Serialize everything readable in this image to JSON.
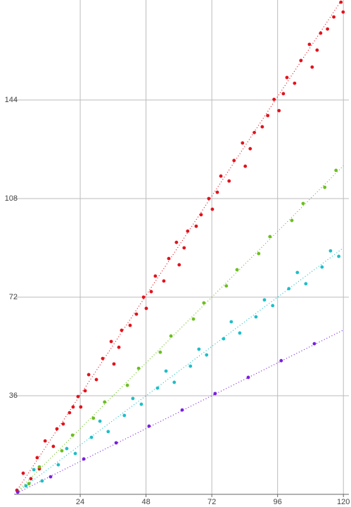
{
  "chart_data": {
    "type": "scatter",
    "xlim": [
      0,
      122
    ],
    "ylim": [
      0,
      180.5
    ],
    "xticks": [
      24,
      48,
      72,
      96,
      120
    ],
    "yticks": [
      36,
      72,
      108,
      144
    ],
    "grid": true,
    "series": [
      {
        "color": "#e3131c",
        "mode": "points",
        "x": [
          0.9,
          3.2,
          6,
          8.3,
          9.1,
          11.2,
          14.2,
          15.5,
          17.8,
          20.1,
          21.4,
          23.2,
          24.2,
          25.8,
          27.1,
          29.9,
          32.2,
          35.3,
          36.3,
          38.1,
          39.1,
          42.2,
          44.5,
          47.1,
          48.1,
          49.9,
          51.4,
          54.5,
          56.3,
          59.1,
          60.1,
          61.9,
          63.2,
          66.3,
          68.1,
          70.9,
          72.2,
          74,
          75.3,
          78.3,
          80.1,
          83.2,
          84.2,
          86,
          87.5,
          90.4,
          92.4,
          94.7,
          96.5,
          98.1,
          99.4,
          102.2,
          104.5,
          107.6,
          108.6,
          110.4,
          111.7,
          114.2,
          116.5,
          119.1,
          119.9
        ],
        "values": [
          1.5,
          7.7,
          5.7,
          13.4,
          9.3,
          19.5,
          17.5,
          23.9,
          25.7,
          29.8,
          31.9,
          35.7,
          31.9,
          37.8,
          43.7,
          41.9,
          49.6,
          55.8,
          47.6,
          53.7,
          59.9,
          61.7,
          65.8,
          72,
          67.9,
          74,
          79.7,
          77.9,
          86.1,
          92,
          83.8,
          90,
          96.1,
          97.9,
          102.1,
          108,
          104.1,
          110.3,
          116.2,
          114.4,
          121.9,
          128.3,
          119.8,
          126.2,
          132.1,
          134.2,
          138.3,
          144.2,
          140.1,
          146.3,
          152.2,
          150.1,
          158.4,
          164.3,
          156,
          162.2,
          168.4,
          169.9,
          174.3,
          179.7,
          176.1
        ]
      },
      {
        "color": "#e3131c",
        "mode": "line",
        "x": [
          0,
          119
        ],
        "values": [
          0,
          180
        ]
      },
      {
        "color": "#6cbf1f",
        "mode": "points",
        "x": [
          5.3,
          9.1,
          17.3,
          21.2,
          28.8,
          32.9,
          41.2,
          45.3,
          53.2,
          57.1,
          65.3,
          69.1,
          77.3,
          81.2,
          89.1,
          93.2,
          101.2,
          105.3,
          113.2,
          117.3
        ],
        "values": [
          3.9,
          10,
          15.9,
          21.6,
          27.8,
          33.7,
          39.8,
          46,
          51.9,
          57.8,
          64,
          69.9,
          76.1,
          82,
          87.9,
          94.1,
          100,
          106.2,
          112.1,
          118.3
        ]
      },
      {
        "color": "#6cbf1f",
        "mode": "line",
        "x": [
          0,
          120
        ],
        "values": [
          0,
          120
        ]
      },
      {
        "color": "#1ebfc8",
        "mode": "points",
        "x": [
          4.2,
          7.1,
          10.1,
          16,
          19.1,
          22.2,
          28.1,
          31.2,
          34.2,
          40.1,
          43.2,
          46.3,
          52.2,
          55.3,
          58.3,
          64.2,
          67.3,
          70.1,
          76.3,
          79.1,
          82.2,
          88.1,
          91.2,
          94.2,
          100.1,
          103.2,
          106.3,
          112.2,
          115.3,
          118.3
        ],
        "values": [
          3.1,
          9,
          4.9,
          10.8,
          16.7,
          14.9,
          20.8,
          26.7,
          22.9,
          28.8,
          35,
          32.9,
          38.8,
          45,
          40.9,
          46.8,
          53,
          50.9,
          56.8,
          63,
          58.9,
          64.8,
          71,
          68.9,
          75.1,
          81,
          76.9,
          83,
          88.9,
          86.9
        ]
      },
      {
        "color": "#1ebfc8",
        "mode": "line",
        "x": [
          0,
          120
        ],
        "values": [
          0,
          90
        ]
      },
      {
        "color": "#7a1fe0",
        "mode": "points",
        "x": [
          1.2,
          13.2,
          25.3,
          37.1,
          49.1,
          61.2,
          73.2,
          85.3,
          97.3,
          109.4
        ],
        "values": [
          0.8,
          6.4,
          12.9,
          18.8,
          24.9,
          30.8,
          36.8,
          42.7,
          48.8,
          55
        ]
      },
      {
        "color": "#7a1fe0",
        "mode": "line",
        "x": [
          0,
          120
        ],
        "values": [
          0,
          60
        ]
      }
    ]
  }
}
